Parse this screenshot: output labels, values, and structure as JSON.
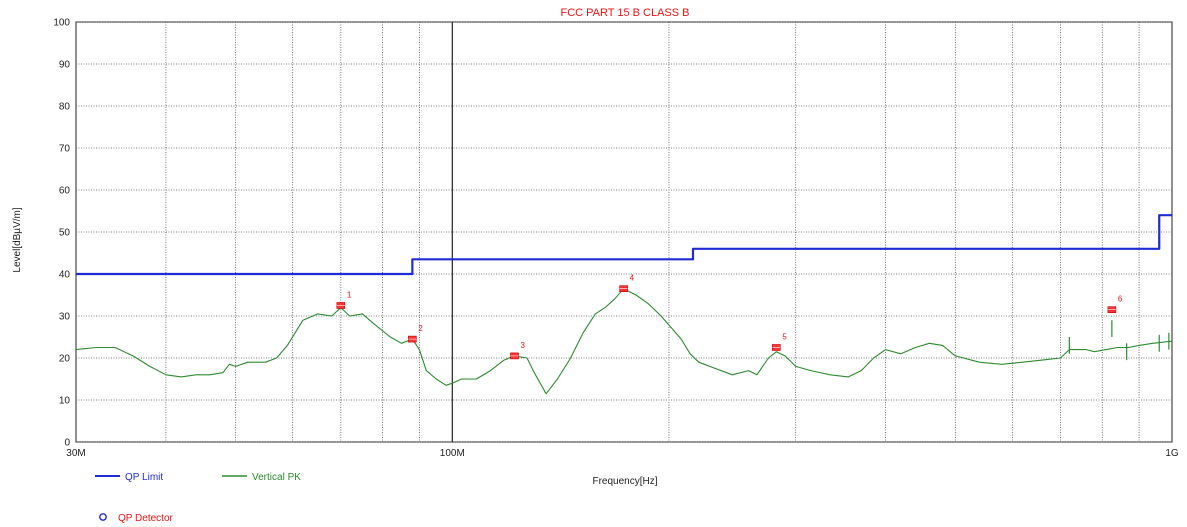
{
  "chart_data": {
    "type": "line",
    "title": "FCC PART 15 B CLASS B",
    "xlabel": "Frequency[Hz]",
    "ylabel": "Level[dBµV/m]",
    "x_scale": "log",
    "xlim": [
      30,
      1000
    ],
    "ylim": [
      0,
      100
    ],
    "y_ticks": [
      0,
      10,
      20,
      30,
      40,
      50,
      60,
      70,
      80,
      90,
      100
    ],
    "x_tick_labels": [
      {
        "value": 30,
        "label": "30M"
      },
      {
        "value": 100,
        "label": "100M"
      },
      {
        "value": 1000,
        "label": "1G"
      }
    ],
    "grid": true,
    "legend": "bottom-left",
    "series": [
      {
        "name": "QP Limit",
        "color": "#1f2bd6",
        "points": [
          [
            30,
            40
          ],
          [
            88,
            40
          ],
          [
            88,
            43.5
          ],
          [
            216,
            43.5
          ],
          [
            216,
            46
          ],
          [
            960,
            46
          ],
          [
            960,
            54
          ],
          [
            1000,
            54
          ]
        ]
      },
      {
        "name": "Vertical PK",
        "color": "#2e8b2e",
        "points": [
          [
            30,
            22
          ],
          [
            32,
            22.5
          ],
          [
            34,
            22.5
          ],
          [
            36,
            20.5
          ],
          [
            38,
            18
          ],
          [
            40,
            16
          ],
          [
            42,
            15.5
          ],
          [
            44,
            16
          ],
          [
            46,
            16
          ],
          [
            48,
            16.5
          ],
          [
            49,
            18.5
          ],
          [
            50,
            18
          ],
          [
            52,
            19
          ],
          [
            55,
            19
          ],
          [
            57,
            20
          ],
          [
            59,
            23
          ],
          [
            62,
            29
          ],
          [
            65,
            30.5
          ],
          [
            68,
            30
          ],
          [
            70,
            32
          ],
          [
            72,
            30
          ],
          [
            75,
            30.5
          ],
          [
            78,
            28
          ],
          [
            82,
            25
          ],
          [
            85,
            23.5
          ],
          [
            88,
            24.5
          ],
          [
            90,
            22
          ],
          [
            92,
            17
          ],
          [
            95,
            15
          ],
          [
            98,
            13.5
          ],
          [
            100,
            14
          ],
          [
            103,
            15
          ],
          [
            108,
            15
          ],
          [
            113,
            17
          ],
          [
            118,
            19.5
          ],
          [
            122,
            20.5
          ],
          [
            127,
            20
          ],
          [
            130,
            16.5
          ],
          [
            135,
            11.5
          ],
          [
            140,
            15
          ],
          [
            146,
            20
          ],
          [
            152,
            26
          ],
          [
            158,
            30.5
          ],
          [
            163,
            32
          ],
          [
            168,
            34
          ],
          [
            173,
            36.5
          ],
          [
            180,
            35
          ],
          [
            187,
            33
          ],
          [
            195,
            30
          ],
          [
            202,
            27
          ],
          [
            208,
            24.5
          ],
          [
            214,
            21
          ],
          [
            220,
            19
          ],
          [
            232,
            17.5
          ],
          [
            245,
            16
          ],
          [
            258,
            17
          ],
          [
            265,
            16
          ],
          [
            275,
            20
          ],
          [
            282,
            21.5
          ],
          [
            290,
            20.5
          ],
          [
            300,
            18
          ],
          [
            315,
            17
          ],
          [
            335,
            16
          ],
          [
            355,
            15.5
          ],
          [
            370,
            17
          ],
          [
            385,
            20
          ],
          [
            400,
            22
          ],
          [
            420,
            21
          ],
          [
            440,
            22.5
          ],
          [
            460,
            23.5
          ],
          [
            480,
            23
          ],
          [
            500,
            20.5
          ],
          [
            540,
            19
          ],
          [
            580,
            18.5
          ],
          [
            620,
            19
          ],
          [
            660,
            19.5
          ],
          [
            700,
            20
          ],
          [
            720,
            22
          ],
          [
            760,
            22
          ],
          [
            780,
            21.5
          ],
          [
            810,
            22
          ],
          [
            840,
            22.5
          ],
          [
            870,
            22.5
          ],
          [
            900,
            23
          ],
          [
            940,
            23.5
          ],
          [
            1000,
            24
          ]
        ],
        "spikes": [
          [
            720,
            25
          ],
          [
            825,
            29
          ],
          [
            865,
            23.5
          ],
          [
            960,
            25.5
          ],
          [
            990,
            26
          ]
        ]
      }
    ],
    "markers": [
      {
        "label": "1",
        "x": 70,
        "y": 32.5
      },
      {
        "label": "2",
        "x": 88,
        "y": 24.5
      },
      {
        "label": "3",
        "x": 122,
        "y": 20.5
      },
      {
        "label": "4",
        "x": 173,
        "y": 36.5
      },
      {
        "label": "5",
        "x": 282,
        "y": 22.5
      },
      {
        "label": "6",
        "x": 825,
        "y": 31.5
      }
    ],
    "legend_items": [
      {
        "name": "QP Limit",
        "color": "#1f2bd6"
      },
      {
        "name": "Vertical PK",
        "color": "#2e8b2e"
      },
      {
        "name": "QP Detector",
        "color": "#1f2bd6",
        "symbol": "circle"
      }
    ]
  }
}
